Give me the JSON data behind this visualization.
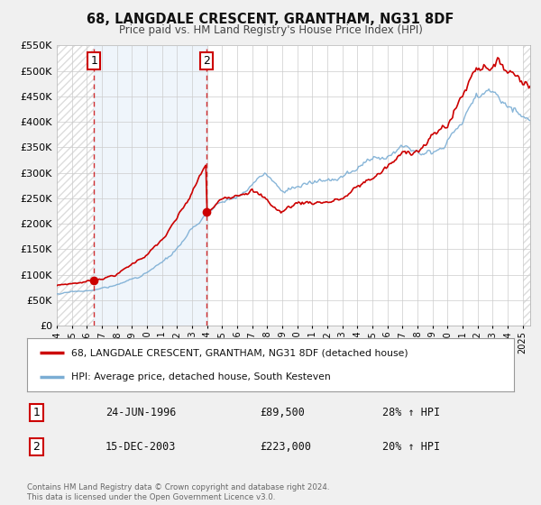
{
  "title": "68, LANGDALE CRESCENT, GRANTHAM, NG31 8DF",
  "subtitle": "Price paid vs. HM Land Registry's House Price Index (HPI)",
  "legend_line1": "68, LANGDALE CRESCENT, GRANTHAM, NG31 8DF (detached house)",
  "legend_line2": "HPI: Average price, detached house, South Kesteven",
  "annotation1_label": "1",
  "annotation1_date": "24-JUN-1996",
  "annotation1_price": "£89,500",
  "annotation1_hpi": "28% ↑ HPI",
  "annotation2_label": "2",
  "annotation2_date": "15-DEC-2003",
  "annotation2_price": "£223,000",
  "annotation2_hpi": "20% ↑ HPI",
  "footnote": "Contains HM Land Registry data © Crown copyright and database right 2024.\nThis data is licensed under the Open Government Licence v3.0.",
  "sale1_year": 1996.47,
  "sale1_value": 89500,
  "sale2_year": 2003.96,
  "sale2_value": 223000,
  "property_color": "#cc0000",
  "hpi_color": "#7aadd4",
  "plot_bg_color": "#ffffff",
  "grid_color": "#cccccc",
  "ylim": [
    0,
    550000
  ],
  "xlim_start": 1994.0,
  "xlim_end": 2025.5
}
